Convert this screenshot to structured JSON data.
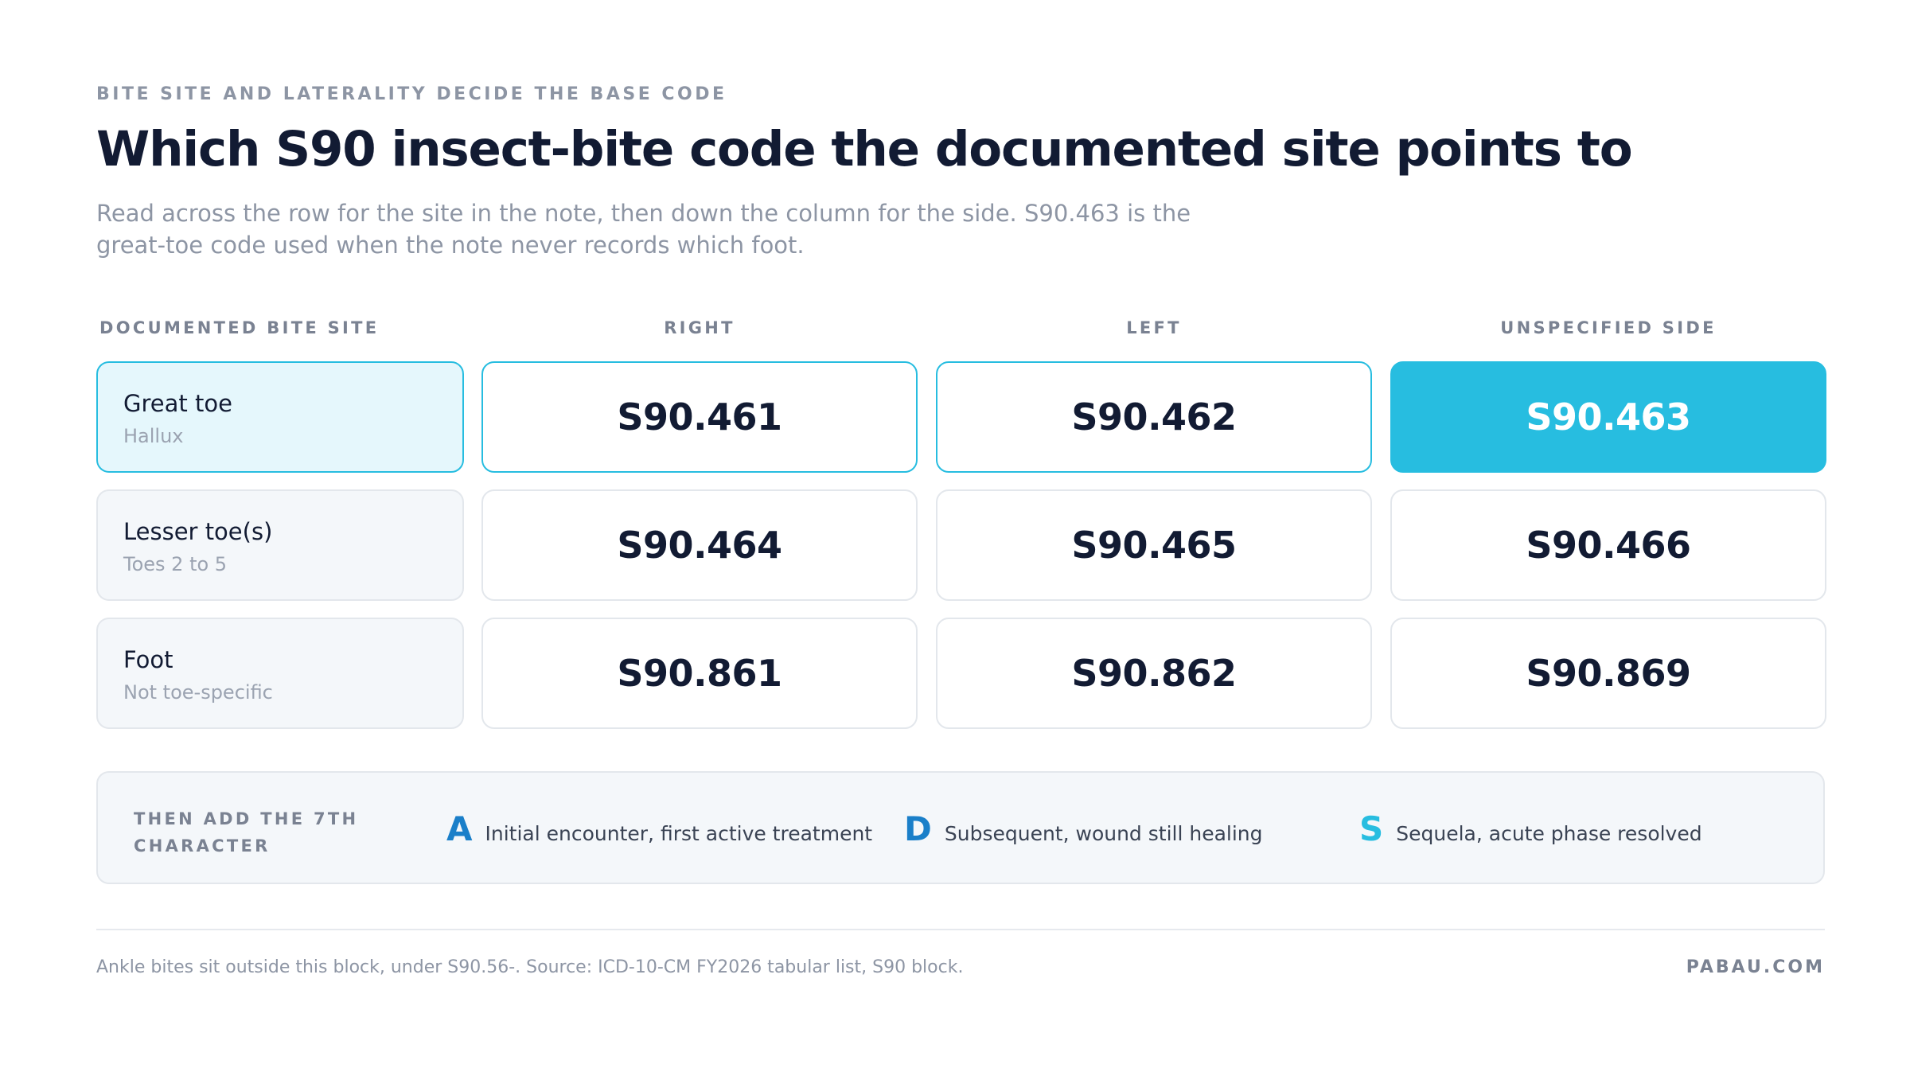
{
  "eyebrow": "BITE SITE AND LATERALITY DECIDE THE BASE CODE",
  "title": "Which S90 insect-bite code the documented site points to",
  "subtitle": "Read across the row for the site in the note, then down the column for the side. S90.463 is the great-toe code used when the note never records which foot.",
  "table": {
    "headers": [
      "DOCUMENTED BITE SITE",
      "RIGHT",
      "LEFT",
      "UNSPECIFIED SIDE"
    ],
    "rows": [
      {
        "site": "Great toe",
        "sub": "Hallux",
        "codes": [
          "S90.461",
          "S90.462",
          "S90.463"
        ]
      },
      {
        "site": "Lesser toe(s)",
        "sub": "Toes 2 to 5",
        "codes": [
          "S90.464",
          "S90.465",
          "S90.466"
        ]
      },
      {
        "site": "Foot",
        "sub": "Not toe-specific",
        "codes": [
          "S90.861",
          "S90.862",
          "S90.869"
        ]
      }
    ]
  },
  "seventh_character": {
    "label": "THEN ADD THE 7TH CHARACTER",
    "items": [
      {
        "letter": "A",
        "text": "Initial encounter, first active treatment",
        "color": "#1a7fc9"
      },
      {
        "letter": "D",
        "text": "Subsequent, wound still healing",
        "color": "#1a7fc9"
      },
      {
        "letter": "S",
        "text": "Sequela, acute phase resolved",
        "color": "#27bde0"
      }
    ]
  },
  "footnote": "Ankle bites sit outside this block, under S90.56-. Source: ICD-10-CM FY2026 tabular list, S90 block.",
  "brand": "PABAU.COM",
  "colors": {
    "accent": "#27bde0",
    "ink": "#121b33",
    "muted": "#8d95a4"
  }
}
